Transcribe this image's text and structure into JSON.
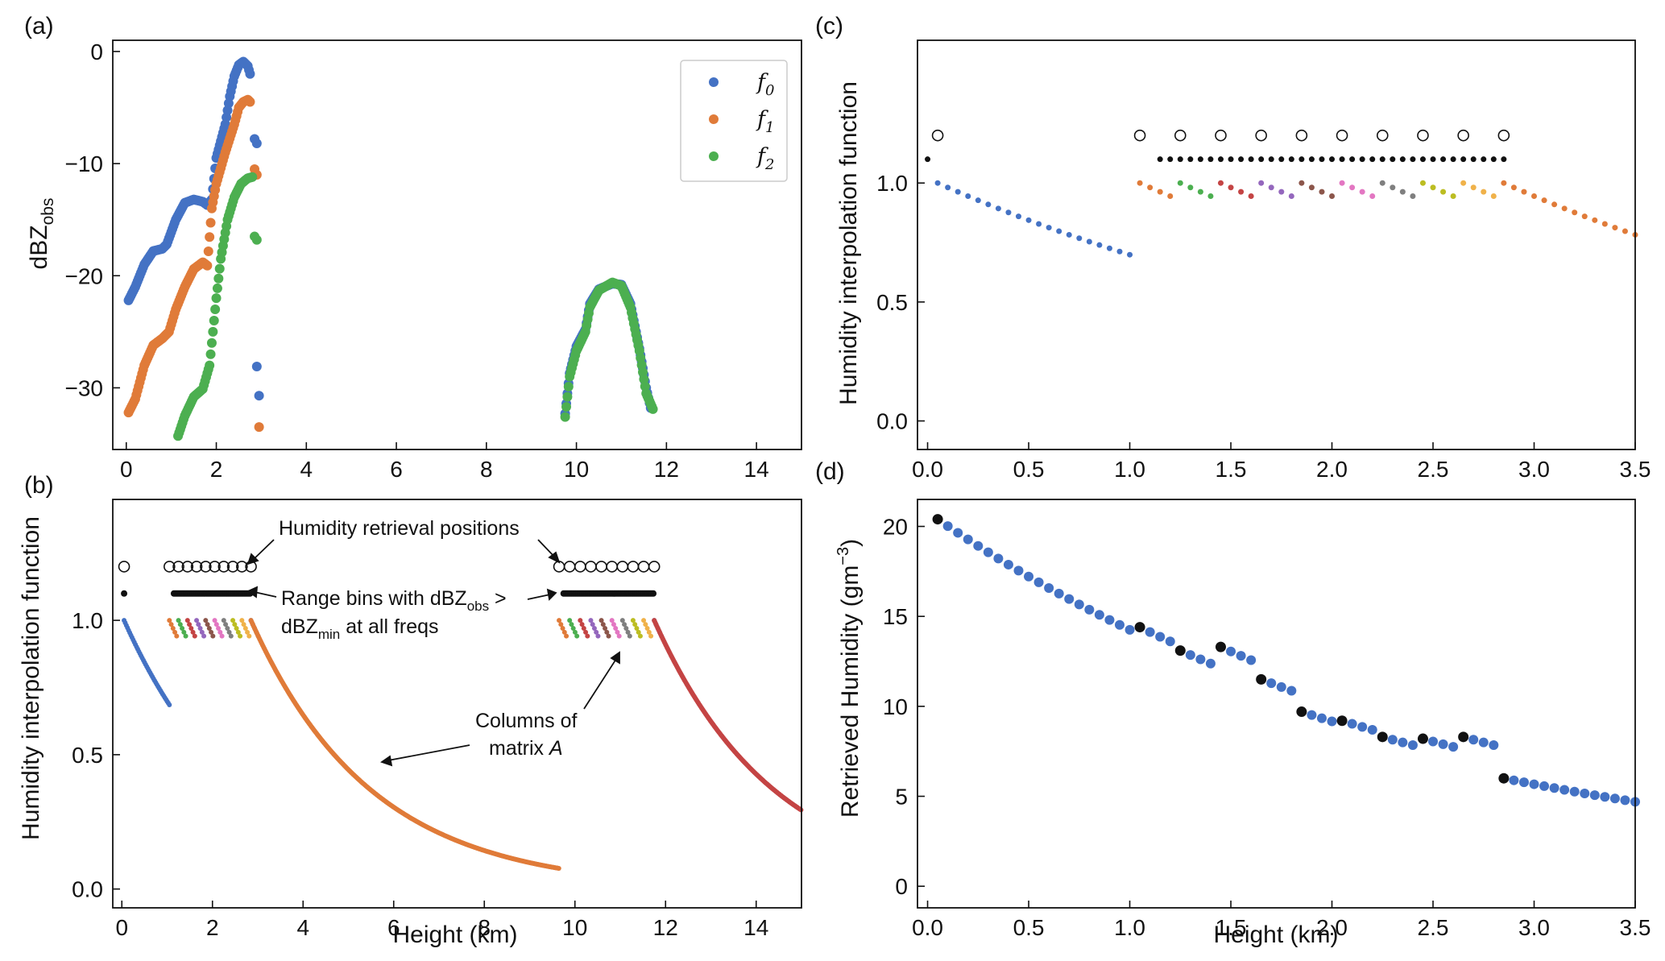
{
  "colors": {
    "blue": "#4472C4",
    "orange": "#E07B39",
    "green": "#4CAF50",
    "red": "#C44444",
    "axis": "#111111",
    "series_palette": [
      "#E07B39",
      "#4CAF50",
      "#C44444",
      "#9467BD",
      "#8C564B",
      "#E377C2",
      "#7F7F7F",
      "#BCBD22",
      "#F0B24A",
      "#4472C4"
    ]
  },
  "chart_data": [
    {
      "id": "a",
      "panel_label": "(a)",
      "type": "scatter",
      "title": "",
      "xlabel": "",
      "ylabel_main": "dBZ",
      "ylabel_sub": "obs",
      "xlim": [
        -0.3,
        15
      ],
      "ylim": [
        -35.5,
        1
      ],
      "xticks": [
        0,
        2,
        4,
        6,
        8,
        10,
        12,
        14
      ],
      "yticks": [
        0,
        -10,
        -20,
        -30
      ],
      "legend_position": "top-right",
      "legend": [
        {
          "base": "f",
          "sub": "0"
        },
        {
          "base": "f",
          "sub": "1"
        },
        {
          "base": "f",
          "sub": "2"
        }
      ],
      "series": [
        {
          "name": "f0",
          "color_key": "blue",
          "curve": [
            [
              0.05,
              -22.2
            ],
            [
              0.2,
              -21
            ],
            [
              0.4,
              -19
            ],
            [
              0.6,
              -17.8
            ],
            [
              0.8,
              -17.6
            ],
            [
              0.9,
              -17.2
            ],
            [
              1.1,
              -15
            ],
            [
              1.3,
              -13.5
            ],
            [
              1.5,
              -13.2
            ],
            [
              1.7,
              -13.4
            ],
            [
              1.8,
              -13.7
            ],
            [
              1.9,
              -13.2
            ],
            [
              2.0,
              -9.5
            ],
            [
              2.1,
              -8
            ],
            [
              2.2,
              -6.5
            ],
            [
              2.3,
              -4
            ],
            [
              2.4,
              -2.2
            ],
            [
              2.5,
              -1.2
            ],
            [
              2.6,
              -0.9
            ],
            [
              2.7,
              -1.3
            ],
            [
              2.75,
              -2
            ]
          ],
          "extra": [
            [
              2.85,
              -7.8
            ],
            [
              2.9,
              -8.2
            ],
            [
              2.9,
              -28.1
            ],
            [
              2.95,
              -30.7
            ]
          ],
          "upper": [
            [
              9.75,
              -32.3
            ],
            [
              9.85,
              -28.7
            ],
            [
              10.0,
              -26.3
            ],
            [
              10.2,
              -24.8
            ],
            [
              10.3,
              -22.5
            ],
            [
              10.5,
              -21.2
            ],
            [
              10.8,
              -20.7
            ],
            [
              11.0,
              -20.8
            ],
            [
              11.2,
              -22.5
            ],
            [
              11.4,
              -26.5
            ],
            [
              11.55,
              -30
            ],
            [
              11.65,
              -31.8
            ]
          ]
        },
        {
          "name": "f1",
          "color_key": "orange",
          "curve": [
            [
              0.05,
              -32.2
            ],
            [
              0.2,
              -31
            ],
            [
              0.4,
              -28
            ],
            [
              0.6,
              -26.2
            ],
            [
              0.8,
              -25.6
            ],
            [
              0.95,
              -25
            ],
            [
              1.1,
              -23
            ],
            [
              1.3,
              -21
            ],
            [
              1.5,
              -19.4
            ],
            [
              1.7,
              -18.8
            ],
            [
              1.8,
              -19.1
            ],
            [
              1.9,
              -14
            ],
            [
              2.0,
              -11.8
            ],
            [
              2.2,
              -9
            ],
            [
              2.4,
              -6.5
            ],
            [
              2.5,
              -5
            ],
            [
              2.6,
              -4.5
            ],
            [
              2.7,
              -4.3
            ],
            [
              2.75,
              -4.5
            ]
          ],
          "extra": [
            [
              2.85,
              -10.5
            ],
            [
              2.9,
              -11
            ],
            [
              2.95,
              -33.5
            ]
          ],
          "upper": []
        },
        {
          "name": "f2",
          "color_key": "green",
          "curve": [
            [
              1.15,
              -34.3
            ],
            [
              1.3,
              -32.5
            ],
            [
              1.5,
              -30.8
            ],
            [
              1.7,
              -30.1
            ],
            [
              1.85,
              -28
            ],
            [
              2.0,
              -22
            ],
            [
              2.1,
              -18.5
            ],
            [
              2.25,
              -15
            ],
            [
              2.4,
              -13
            ],
            [
              2.55,
              -11.8
            ],
            [
              2.7,
              -11.3
            ],
            [
              2.8,
              -11.2
            ]
          ],
          "extra": [
            [
              2.85,
              -16.5
            ],
            [
              2.9,
              -16.8
            ]
          ],
          "upper": [
            [
              9.75,
              -32.6
            ],
            [
              9.85,
              -29
            ],
            [
              10.0,
              -26.7
            ],
            [
              10.2,
              -25
            ],
            [
              10.3,
              -22.8
            ],
            [
              10.5,
              -21.3
            ],
            [
              10.8,
              -20.6
            ],
            [
              11.0,
              -20.9
            ],
            [
              11.2,
              -22.8
            ],
            [
              11.4,
              -26.7
            ],
            [
              11.55,
              -30.5
            ],
            [
              11.7,
              -31.9
            ]
          ]
        }
      ]
    },
    {
      "id": "b",
      "panel_label": "(b)",
      "type": "line",
      "title": "",
      "xlabel": "Height (km)",
      "ylabel": "Humidity interpolation function",
      "xlim": [
        -0.2,
        15
      ],
      "ylim": [
        -0.07,
        1.45
      ],
      "xticks": [
        0,
        2,
        4,
        6,
        8,
        10,
        12,
        14
      ],
      "yticks": [
        0.0,
        0.5,
        1.0
      ],
      "retrieval_marker": {
        "x": 0.05,
        "y": 1.2
      },
      "range_marker": {
        "x": 0.05,
        "y": 1.1
      },
      "retrieval_positions": [
        [
          1.05,
          2.85
        ],
        [
          9.65,
          11.75
        ]
      ],
      "range_bins": [
        [
          1.15,
          2.85
        ],
        [
          9.75,
          11.75
        ]
      ],
      "first_column": {
        "x_start": 0.05,
        "x_end": 1.05,
        "y_start": 1.0,
        "decay_km": 2.65
      },
      "columns_start": [
        1.05,
        9.65
      ],
      "columns_end": [
        2.85,
        11.75
      ],
      "tail_segments": [
        {
          "color_key": "orange",
          "x_start": 2.85,
          "x_end": 9.65,
          "decay_km": 2.65
        },
        {
          "color_key": "red",
          "x_start": 11.75,
          "x_end": 15.0,
          "decay_km": 2.65
        }
      ],
      "annotations": {
        "retrieval": "Humidity retrieval positions",
        "range_bins_line1_pre": "Range bins with dBZ",
        "range_bins_line1_sub": "obs",
        "range_bins_line1_post": " >",
        "range_bins_line2_pre": "dBZ",
        "range_bins_line2_sub": "min",
        "range_bins_line2_post": " at all freqs",
        "columns_line1": "Columns of",
        "columns_line2_pre": "matrix ",
        "columns_line2_italic": "A"
      }
    },
    {
      "id": "c",
      "panel_label": "(c)",
      "type": "scatter",
      "title": "",
      "xlabel": "",
      "ylabel": "Humidity interpolation function",
      "xlim": [
        -0.05,
        3.5
      ],
      "ylim": [
        -0.12,
        1.6
      ],
      "xticks": [
        0.0,
        0.5,
        1.0,
        1.5,
        2.0,
        2.5,
        3.0,
        3.5
      ],
      "yticks": [
        0.0,
        0.5,
        1.0
      ],
      "retrieval_positions": [
        0.05,
        1.05,
        1.25,
        1.45,
        1.65,
        1.85,
        2.05,
        2.25,
        2.45,
        2.65,
        2.85
      ],
      "retrieval_y": 1.2,
      "range_bins_y": 1.1,
      "range_bins": {
        "single": 0.0,
        "from": 1.15,
        "to": 2.85,
        "step": 0.05
      },
      "first_column": {
        "x_start": 0.05,
        "x_end": 1.0,
        "step": 0.05,
        "decay_km": 2.65
      },
      "mid_columns": [
        1.05,
        1.25,
        1.45,
        1.65,
        1.85,
        2.05,
        2.25,
        2.45,
        2.65
      ],
      "mid_column_step": 0.05,
      "mid_column_points": 4,
      "tail": {
        "x_start": 2.85,
        "x_end": 3.5,
        "step": 0.05,
        "decay_km": 2.65
      }
    },
    {
      "id": "d",
      "panel_label": "(d)",
      "type": "scatter",
      "title": "",
      "xlabel": "Height (km)",
      "ylabel_pre": "Retrieved Humidity (gm",
      "ylabel_sup": "−3",
      "ylabel_post": ")",
      "xlim": [
        -0.05,
        3.5
      ],
      "ylim": [
        -1.2,
        21.5
      ],
      "xticks": [
        0.0,
        0.5,
        1.0,
        1.5,
        2.0,
        2.5,
        3.0,
        3.5
      ],
      "yticks": [
        0,
        5,
        10,
        15,
        20
      ],
      "retrieved_points": {
        "x": [
          0.05,
          1.05,
          1.25,
          1.45,
          1.65,
          1.85,
          2.05,
          2.25,
          2.45,
          2.65,
          2.85
        ],
        "y": [
          20.4,
          14.4,
          13.1,
          13.3,
          11.5,
          9.7,
          9.2,
          8.3,
          8.2,
          8.3,
          6.0
        ]
      },
      "profile": {
        "start_x": 0.05,
        "end_x": 3.5,
        "step": 0.05,
        "decay_km": 2.65
      }
    }
  ]
}
